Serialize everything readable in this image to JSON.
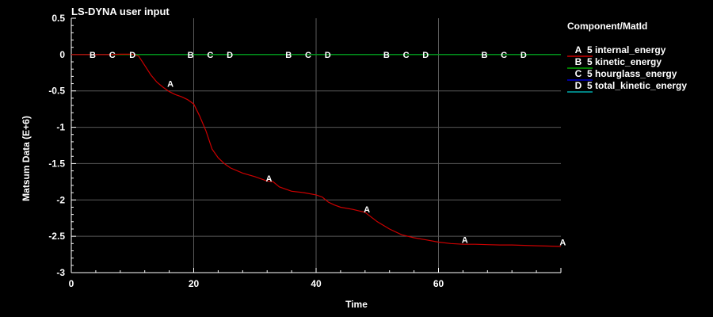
{
  "chart_data": {
    "type": "line",
    "title": "LS-DYNA user input",
    "xlabel": "Time",
    "ylabel": "Matsum Data (E+6)",
    "xlim": [
      0,
      80
    ],
    "ylim": [
      -3,
      0.5
    ],
    "x_ticks": [
      0,
      20,
      40,
      60
    ],
    "y_ticks": [
      0.5,
      0,
      -0.5,
      -1,
      -1.5,
      -2,
      -2.5,
      -3
    ],
    "grid": true,
    "background": "#000000",
    "legend_title": "Component/MatId",
    "legend_position": "right",
    "series": [
      {
        "marker": "A",
        "name": "5 internal_energy",
        "color": "#cc0000",
        "x": [
          0,
          2,
          4,
          6,
          8,
          10,
          11,
          12,
          13,
          14,
          15,
          16,
          17,
          18,
          19,
          20,
          21,
          22,
          23,
          24,
          25,
          26,
          28,
          30,
          32,
          33,
          34,
          36,
          38,
          40,
          41,
          42,
          43,
          44,
          46,
          48,
          50,
          52,
          54,
          56,
          58,
          60,
          62,
          64,
          66,
          68,
          70,
          72,
          74,
          76,
          78,
          80
        ],
        "y": [
          0,
          0,
          0,
          0,
          0.005,
          0.005,
          -0.02,
          -0.15,
          -0.28,
          -0.38,
          -0.45,
          -0.51,
          -0.55,
          -0.58,
          -0.62,
          -0.68,
          -0.85,
          -1.05,
          -1.3,
          -1.42,
          -1.5,
          -1.56,
          -1.63,
          -1.68,
          -1.74,
          -1.75,
          -1.82,
          -1.88,
          -1.9,
          -1.93,
          -1.96,
          -2.03,
          -2.07,
          -2.1,
          -2.13,
          -2.17,
          -2.3,
          -2.4,
          -2.48,
          -2.52,
          -2.55,
          -2.58,
          -2.6,
          -2.61,
          -2.61,
          -2.615,
          -2.62,
          -2.62,
          -2.625,
          -2.63,
          -2.635,
          -2.64
        ]
      },
      {
        "marker": "B",
        "name": "5 kinetic_energy",
        "color": "#00aa00",
        "x": [
          0,
          80
        ],
        "y": [
          0,
          0
        ]
      },
      {
        "marker": "C",
        "name": "5 hourglass_energy",
        "color": "#0000cc",
        "x": [
          0,
          80
        ],
        "y": [
          0,
          0
        ]
      },
      {
        "marker": "D",
        "name": "5 total_kinetic_energy",
        "color": "#00aaaa",
        "x": [
          0,
          80
        ],
        "y": [
          0,
          0
        ]
      }
    ],
    "marker_labels": [
      {
        "text": "B",
        "x": 3.5,
        "y": 0
      },
      {
        "text": "C",
        "x": 6.7,
        "y": 0
      },
      {
        "text": "D",
        "x": 10,
        "y": 0
      },
      {
        "text": "A",
        "x": 16.2,
        "y": -0.4
      },
      {
        "text": "B",
        "x": 19.5,
        "y": 0
      },
      {
        "text": "C",
        "x": 22.7,
        "y": 0
      },
      {
        "text": "D",
        "x": 25.9,
        "y": 0
      },
      {
        "text": "A",
        "x": 32.3,
        "y": -1.7
      },
      {
        "text": "B",
        "x": 35.5,
        "y": 0
      },
      {
        "text": "C",
        "x": 38.7,
        "y": 0
      },
      {
        "text": "D",
        "x": 41.9,
        "y": 0
      },
      {
        "text": "A",
        "x": 48.3,
        "y": -2.13
      },
      {
        "text": "B",
        "x": 51.5,
        "y": 0
      },
      {
        "text": "C",
        "x": 54.7,
        "y": 0
      },
      {
        "text": "D",
        "x": 57.9,
        "y": 0
      },
      {
        "text": "A",
        "x": 64.3,
        "y": -2.55
      },
      {
        "text": "B",
        "x": 67.5,
        "y": 0
      },
      {
        "text": "C",
        "x": 70.7,
        "y": 0
      },
      {
        "text": "D",
        "x": 73.9,
        "y": 0
      },
      {
        "text": "A",
        "x": 80.3,
        "y": -2.58
      }
    ]
  }
}
